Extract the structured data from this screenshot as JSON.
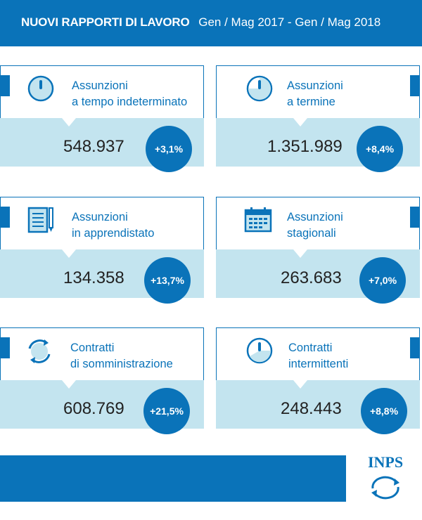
{
  "header": {
    "title": "NUOVI RAPPORTI DI LAVORO",
    "period": "Gen / Mag 2017 - Gen / Mag 2018"
  },
  "cards": [
    {
      "line1": "Assunzioni",
      "line2": "a tempo indeterminato",
      "value": "548.937",
      "pct": "+3,1%",
      "icon": "stopwatch-icon"
    },
    {
      "line1": "Assunzioni",
      "line2": "a termine",
      "value": "1.351.989",
      "pct": "+8,4%",
      "icon": "timer-icon"
    },
    {
      "line1": "Assunzioni",
      "line2": "in apprendistato",
      "value": "134.358",
      "pct": "+13,7%",
      "icon": "notepad-pencil-icon"
    },
    {
      "line1": "Assunzioni",
      "line2": "stagionali",
      "value": "263.683",
      "pct": "+7,0%",
      "icon": "calendar-icon"
    },
    {
      "line1": "Contratti",
      "line2": "di somministrazione",
      "value": "608.769",
      "pct": "+21,5%",
      "icon": "cycle-arrows-icon"
    },
    {
      "line1": "Contratti",
      "line2": "intermittenti",
      "value": "248.443",
      "pct": "+8,8%",
      "icon": "gauge-icon"
    }
  ],
  "logo": {
    "text": "INPS"
  },
  "colors": {
    "primary": "#0a73b9",
    "light": "#c3e4ef"
  }
}
